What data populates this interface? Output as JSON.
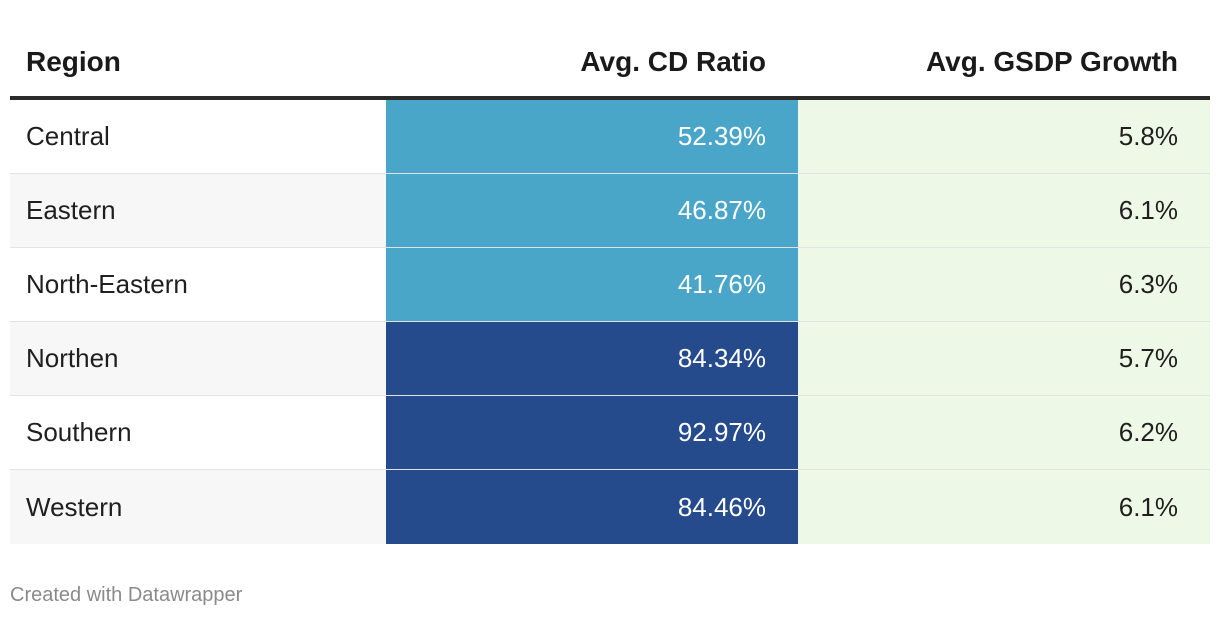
{
  "chart_data": {
    "type": "table",
    "columns": [
      "Region",
      "Avg. CD Ratio",
      "Avg. GSDP Growth"
    ],
    "rows": [
      {
        "region": "Central",
        "cd_ratio": "52.39%",
        "cd_value": 52.39,
        "gsdp": "5.8%"
      },
      {
        "region": "Eastern",
        "cd_ratio": "46.87%",
        "cd_value": 46.87,
        "gsdp": "6.1%"
      },
      {
        "region": "North-Eastern",
        "cd_ratio": "41.76%",
        "cd_value": 41.76,
        "gsdp": "6.3%"
      },
      {
        "region": "Northen",
        "cd_ratio": "84.34%",
        "cd_value": 84.34,
        "gsdp": "5.7%"
      },
      {
        "region": "Southern",
        "cd_ratio": "92.97%",
        "cd_value": 92.97,
        "gsdp": "6.2%"
      },
      {
        "region": "Western",
        "cd_ratio": "84.46%",
        "cd_value": 84.46,
        "gsdp": "6.1%"
      }
    ],
    "colors": {
      "cd_low": "#4aa6c9",
      "cd_high": "#264b8c",
      "gsdp_bg": "#eef8e6"
    }
  },
  "footer": "Created with Datawrapper"
}
